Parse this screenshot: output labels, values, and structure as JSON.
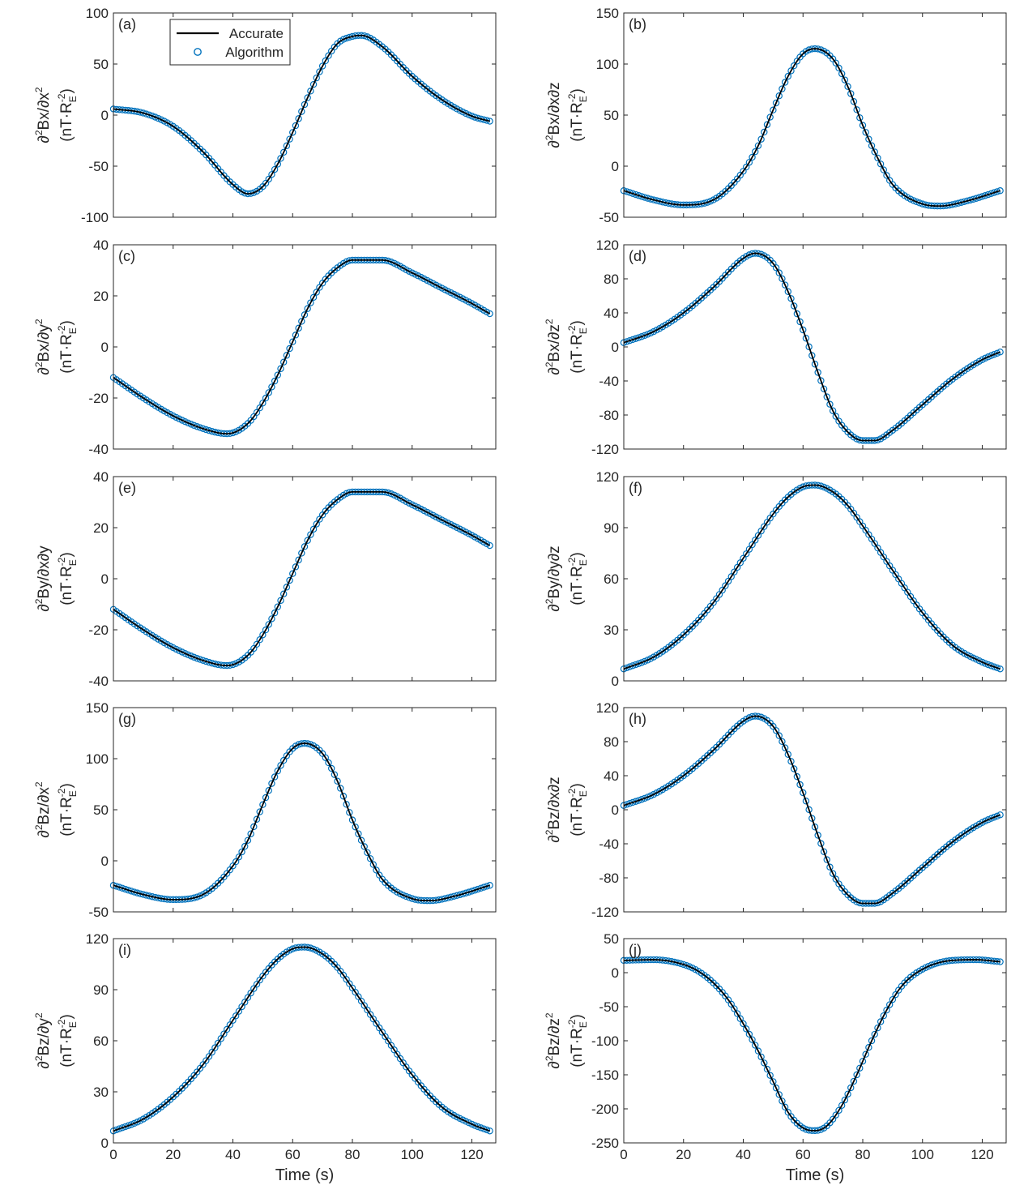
{
  "figure": {
    "x_axis_label": "Time (s)",
    "y_unit_label": "(nT·R",
    "y_unit_sub": "E",
    "y_unit_sup": "-2",
    "y_unit_close": ")",
    "legend": {
      "line_label": "Accurate",
      "marker_label": "Algorithm"
    },
    "colors": {
      "accurate": "#000000",
      "algorithm": "#0072BD",
      "axes": "#262626"
    }
  },
  "chart_data": [
    {
      "panel": "(a)",
      "type": "line",
      "ylabel_main": "∂",
      "ylabel_sup": "2",
      "ylabel_rest": "Bx/∂x",
      "ylabel_sup2": "2",
      "xlim": [
        0,
        128
      ],
      "ylim": [
        -100,
        100
      ],
      "yticks": [
        -100,
        -50,
        0,
        50,
        100
      ],
      "xticks": [
        0,
        20,
        40,
        60,
        80,
        100,
        120
      ],
      "series": [
        {
          "name": "Accurate",
          "x": [
            0,
            10,
            20,
            30,
            40,
            45,
            50,
            55,
            60,
            65,
            70,
            75,
            80,
            83,
            90,
            100,
            110,
            120,
            126
          ],
          "y": [
            6,
            2,
            -11,
            -36,
            -68,
            -77,
            -70,
            -48,
            -17,
            17,
            48,
            70,
            77,
            78,
            67,
            38,
            15,
            -1,
            -6
          ]
        },
        {
          "name": "Algorithm",
          "x": [
            0,
            10,
            20,
            30,
            40,
            45,
            50,
            55,
            60,
            65,
            70,
            75,
            80,
            83,
            90,
            100,
            110,
            120,
            126
          ],
          "y": [
            6,
            2,
            -11,
            -36,
            -68,
            -77,
            -70,
            -48,
            -17,
            17,
            48,
            70,
            77,
            78,
            67,
            38,
            15,
            -1,
            -6
          ]
        }
      ]
    },
    {
      "panel": "(b)",
      "type": "line",
      "ylabel_main": "∂",
      "ylabel_sup": "2",
      "ylabel_rest": "Bx/∂x∂z",
      "ylabel_sup2": "",
      "xlim": [
        0,
        128
      ],
      "ylim": [
        -50,
        150
      ],
      "yticks": [
        -50,
        0,
        50,
        100,
        150
      ],
      "xticks": [
        0,
        20,
        40,
        60,
        80,
        100,
        120
      ],
      "series": [
        {
          "name": "Accurate",
          "x": [
            0,
            10,
            20,
            30,
            40,
            45,
            50,
            55,
            60,
            64,
            70,
            75,
            80,
            85,
            90,
            100,
            106,
            115,
            126
          ],
          "y": [
            -24,
            -33,
            -38,
            -33,
            -5,
            20,
            55,
            88,
            110,
            115,
            105,
            78,
            40,
            8,
            -18,
            -37,
            -39,
            -34,
            -24
          ]
        },
        {
          "name": "Algorithm",
          "x": [
            0,
            10,
            20,
            30,
            40,
            45,
            50,
            55,
            60,
            64,
            70,
            75,
            80,
            85,
            90,
            100,
            106,
            115,
            126
          ],
          "y": [
            -24,
            -33,
            -38,
            -33,
            -5,
            20,
            55,
            88,
            110,
            115,
            105,
            78,
            40,
            8,
            -18,
            -37,
            -39,
            -34,
            -24
          ]
        }
      ]
    },
    {
      "panel": "(c)",
      "type": "line",
      "ylabel_main": "∂",
      "ylabel_sup": "2",
      "ylabel_rest": "Bx/∂y",
      "ylabel_sup2": "2",
      "xlim": [
        0,
        128
      ],
      "ylim": [
        -40,
        40
      ],
      "yticks": [
        -40,
        -20,
        0,
        20,
        40
      ],
      "xticks": [
        0,
        20,
        40,
        60,
        80,
        100,
        120
      ],
      "series": [
        {
          "name": "Accurate",
          "x": [
            0,
            10,
            20,
            30,
            38,
            45,
            50,
            55,
            60,
            65,
            70,
            75,
            80,
            90,
            100,
            110,
            120,
            126
          ],
          "y": [
            -12,
            -20,
            -27,
            -32,
            -34,
            -30,
            -22,
            -11,
            2,
            15,
            25,
            31,
            34,
            34,
            29,
            23,
            17,
            13
          ]
        },
        {
          "name": "Algorithm",
          "x": [
            0,
            10,
            20,
            30,
            38,
            45,
            50,
            55,
            60,
            65,
            70,
            75,
            80,
            90,
            100,
            110,
            120,
            126
          ],
          "y": [
            -12,
            -20,
            -27,
            -32,
            -34,
            -30,
            -22,
            -11,
            2,
            15,
            25,
            31,
            34,
            34,
            29,
            23,
            17,
            13
          ]
        }
      ]
    },
    {
      "panel": "(d)",
      "type": "line",
      "ylabel_main": "∂",
      "ylabel_sup": "2",
      "ylabel_rest": "Bx/∂z",
      "ylabel_sup2": "2",
      "xlim": [
        0,
        128
      ],
      "ylim": [
        -120,
        120
      ],
      "yticks": [
        -120,
        -80,
        -40,
        0,
        40,
        80,
        120
      ],
      "xticks": [
        0,
        20,
        40,
        60,
        80,
        100,
        120
      ],
      "series": [
        {
          "name": "Accurate",
          "x": [
            0,
            10,
            20,
            30,
            40,
            44,
            50,
            55,
            60,
            65,
            70,
            75,
            80,
            84,
            90,
            100,
            110,
            120,
            126
          ],
          "y": [
            5,
            18,
            40,
            70,
            104,
            110,
            98,
            65,
            20,
            -30,
            -75,
            -100,
            -110,
            -110,
            -98,
            -68,
            -38,
            -15,
            -6
          ]
        },
        {
          "name": "Algorithm",
          "x": [
            0,
            10,
            20,
            30,
            40,
            44,
            50,
            55,
            60,
            65,
            70,
            75,
            80,
            84,
            90,
            100,
            110,
            120,
            126
          ],
          "y": [
            5,
            18,
            40,
            70,
            104,
            110,
            98,
            65,
            20,
            -30,
            -75,
            -100,
            -110,
            -110,
            -98,
            -68,
            -38,
            -15,
            -6
          ]
        }
      ]
    },
    {
      "panel": "(e)",
      "type": "line",
      "ylabel_main": "∂",
      "ylabel_sup": "2",
      "ylabel_rest": "By/∂x∂y",
      "ylabel_sup2": "",
      "xlim": [
        0,
        128
      ],
      "ylim": [
        -40,
        40
      ],
      "yticks": [
        -40,
        -20,
        0,
        20,
        40
      ],
      "xticks": [
        0,
        20,
        40,
        60,
        80,
        100,
        120
      ],
      "series": [
        {
          "name": "Accurate",
          "x": [
            0,
            10,
            20,
            30,
            38,
            45,
            50,
            55,
            60,
            65,
            70,
            75,
            80,
            90,
            100,
            110,
            120,
            126
          ],
          "y": [
            -12,
            -20,
            -27,
            -32,
            -34,
            -30,
            -22,
            -11,
            2,
            15,
            25,
            31,
            34,
            34,
            29,
            23,
            17,
            13
          ]
        },
        {
          "name": "Algorithm",
          "x": [
            0,
            10,
            20,
            30,
            38,
            45,
            50,
            55,
            60,
            65,
            70,
            75,
            80,
            90,
            100,
            110,
            120,
            126
          ],
          "y": [
            -12,
            -20,
            -27,
            -32,
            -34,
            -30,
            -22,
            -11,
            2,
            15,
            25,
            31,
            34,
            34,
            29,
            23,
            17,
            13
          ]
        }
      ]
    },
    {
      "panel": "(f)",
      "type": "line",
      "ylabel_main": "∂",
      "ylabel_sup": "2",
      "ylabel_rest": "By/∂y∂z",
      "ylabel_sup2": "",
      "xlim": [
        0,
        128
      ],
      "ylim": [
        0,
        120
      ],
      "yticks": [
        0,
        30,
        60,
        90,
        120
      ],
      "xticks": [
        0,
        20,
        40,
        60,
        80,
        100,
        120
      ],
      "series": [
        {
          "name": "Accurate",
          "x": [
            0,
            10,
            20,
            30,
            40,
            50,
            55,
            60,
            64,
            70,
            75,
            80,
            90,
            100,
            110,
            120,
            126
          ],
          "y": [
            7,
            14,
            27,
            46,
            72,
            98,
            108,
            114,
            115,
            111,
            103,
            91,
            65,
            40,
            21,
            11,
            7
          ]
        },
        {
          "name": "Algorithm",
          "x": [
            0,
            10,
            20,
            30,
            40,
            50,
            55,
            60,
            64,
            70,
            75,
            80,
            90,
            100,
            110,
            120,
            126
          ],
          "y": [
            7,
            14,
            27,
            46,
            72,
            98,
            108,
            114,
            115,
            111,
            103,
            91,
            65,
            40,
            21,
            11,
            7
          ]
        }
      ]
    },
    {
      "panel": "(g)",
      "type": "line",
      "ylabel_main": "∂",
      "ylabel_sup": "2",
      "ylabel_rest": "Bz/∂x",
      "ylabel_sup2": "2",
      "xlim": [
        0,
        128
      ],
      "ylim": [
        -50,
        150
      ],
      "yticks": [
        -50,
        0,
        50,
        100,
        150
      ],
      "xticks": [
        0,
        20,
        40,
        60,
        80,
        100,
        120
      ],
      "series": [
        {
          "name": "Accurate",
          "x": [
            0,
            10,
            20,
            30,
            40,
            45,
            50,
            55,
            60,
            64,
            70,
            75,
            80,
            85,
            90,
            100,
            106,
            115,
            126
          ],
          "y": [
            -24,
            -33,
            -38,
            -33,
            -5,
            20,
            55,
            88,
            110,
            115,
            105,
            78,
            40,
            8,
            -18,
            -37,
            -39,
            -34,
            -24
          ]
        },
        {
          "name": "Algorithm",
          "x": [
            0,
            10,
            20,
            30,
            40,
            45,
            50,
            55,
            60,
            64,
            70,
            75,
            80,
            85,
            90,
            100,
            106,
            115,
            126
          ],
          "y": [
            -24,
            -33,
            -38,
            -33,
            -5,
            20,
            55,
            88,
            110,
            115,
            105,
            78,
            40,
            8,
            -18,
            -37,
            -39,
            -34,
            -24
          ]
        }
      ]
    },
    {
      "panel": "(h)",
      "type": "line",
      "ylabel_main": "∂",
      "ylabel_sup": "2",
      "ylabel_rest": "Bz/∂x∂z",
      "ylabel_sup2": "",
      "xlim": [
        0,
        128
      ],
      "ylim": [
        -120,
        120
      ],
      "yticks": [
        -120,
        -80,
        -40,
        0,
        40,
        80,
        120
      ],
      "xticks": [
        0,
        20,
        40,
        60,
        80,
        100,
        120
      ],
      "series": [
        {
          "name": "Accurate",
          "x": [
            0,
            10,
            20,
            30,
            40,
            44,
            50,
            55,
            60,
            65,
            70,
            75,
            80,
            84,
            90,
            100,
            110,
            120,
            126
          ],
          "y": [
            5,
            18,
            40,
            70,
            104,
            110,
            98,
            65,
            20,
            -30,
            -75,
            -100,
            -110,
            -110,
            -98,
            -68,
            -38,
            -15,
            -6
          ]
        },
        {
          "name": "Algorithm",
          "x": [
            0,
            10,
            20,
            30,
            40,
            44,
            50,
            55,
            60,
            65,
            70,
            75,
            80,
            84,
            90,
            100,
            110,
            120,
            126
          ],
          "y": [
            5,
            18,
            40,
            70,
            104,
            110,
            98,
            65,
            20,
            -30,
            -75,
            -100,
            -110,
            -110,
            -98,
            -68,
            -38,
            -15,
            -6
          ]
        }
      ]
    },
    {
      "panel": "(i)",
      "type": "line",
      "ylabel_main": "∂",
      "ylabel_sup": "2",
      "ylabel_rest": "Bz/∂y",
      "ylabel_sup2": "2",
      "xlim": [
        0,
        128
      ],
      "ylim": [
        0,
        120
      ],
      "yticks": [
        0,
        30,
        60,
        90,
        120
      ],
      "xticks": [
        0,
        20,
        40,
        60,
        80,
        100,
        120
      ],
      "series": [
        {
          "name": "Accurate",
          "x": [
            0,
            10,
            20,
            30,
            40,
            50,
            55,
            60,
            64,
            70,
            75,
            80,
            90,
            100,
            110,
            120,
            126
          ],
          "y": [
            7,
            14,
            27,
            46,
            72,
            98,
            108,
            114,
            115,
            111,
            103,
            91,
            65,
            40,
            21,
            11,
            7
          ]
        },
        {
          "name": "Algorithm",
          "x": [
            0,
            10,
            20,
            30,
            40,
            50,
            55,
            60,
            64,
            70,
            75,
            80,
            90,
            100,
            110,
            120,
            126
          ],
          "y": [
            7,
            14,
            27,
            46,
            72,
            98,
            108,
            114,
            115,
            111,
            103,
            91,
            65,
            40,
            21,
            11,
            7
          ]
        }
      ]
    },
    {
      "panel": "(j)",
      "type": "line",
      "ylabel_main": "∂",
      "ylabel_sup": "2",
      "ylabel_rest": "Bz/∂z",
      "ylabel_sup2": "2",
      "xlim": [
        0,
        128
      ],
      "ylim": [
        -250,
        50
      ],
      "yticks": [
        -250,
        -200,
        -150,
        -100,
        -50,
        0,
        50
      ],
      "xticks": [
        0,
        20,
        40,
        60,
        80,
        100,
        120
      ],
      "series": [
        {
          "name": "Accurate",
          "x": [
            0,
            10,
            20,
            25,
            30,
            35,
            40,
            45,
            50,
            55,
            60,
            64,
            68,
            73,
            78,
            83,
            88,
            93,
            100,
            110,
            118,
            126
          ],
          "y": [
            18,
            19,
            12,
            2,
            -15,
            -40,
            -75,
            -115,
            -160,
            -205,
            -228,
            -232,
            -225,
            -195,
            -150,
            -100,
            -55,
            -20,
            5,
            18,
            19,
            16
          ]
        },
        {
          "name": "Algorithm",
          "x": [
            0,
            10,
            20,
            25,
            30,
            35,
            40,
            45,
            50,
            55,
            60,
            64,
            68,
            73,
            78,
            83,
            88,
            93,
            100,
            110,
            118,
            126
          ],
          "y": [
            18,
            19,
            12,
            2,
            -15,
            -40,
            -75,
            -115,
            -160,
            -205,
            -228,
            -232,
            -225,
            -195,
            -150,
            -100,
            -55,
            -20,
            5,
            18,
            19,
            16
          ]
        }
      ]
    }
  ]
}
